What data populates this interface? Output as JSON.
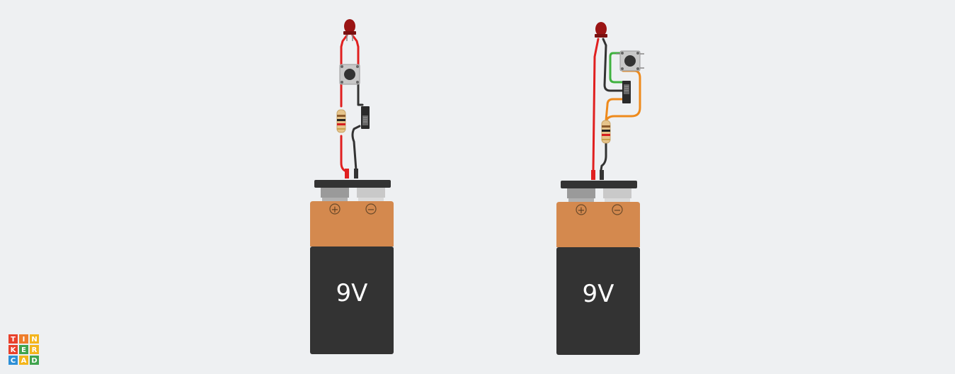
{
  "circuits": [
    {
      "battery": {
        "label": "9V",
        "plus": "+",
        "minus": "−"
      }
    },
    {
      "battery": {
        "label": "9V",
        "plus": "+",
        "minus": "−"
      }
    }
  ],
  "logo": {
    "letters": [
      "T",
      "I",
      "N",
      "K",
      "E",
      "R",
      "C",
      "A",
      "D"
    ],
    "colors": [
      "#e8412c",
      "#ee7d2b",
      "#f4b51c",
      "#e8412c",
      "#3fa34d",
      "#f4b51c",
      "#2d8fd6",
      "#f4b51c",
      "#3fa34d"
    ]
  },
  "colors": {
    "background": "#eef0f2",
    "battery_top": "#d4894e",
    "battery_body": "#333333",
    "wire_red": "#e02020",
    "wire_black": "#333333",
    "wire_green": "#3fb23f",
    "wire_orange": "#ee8a1c",
    "led": "#9a1414"
  }
}
